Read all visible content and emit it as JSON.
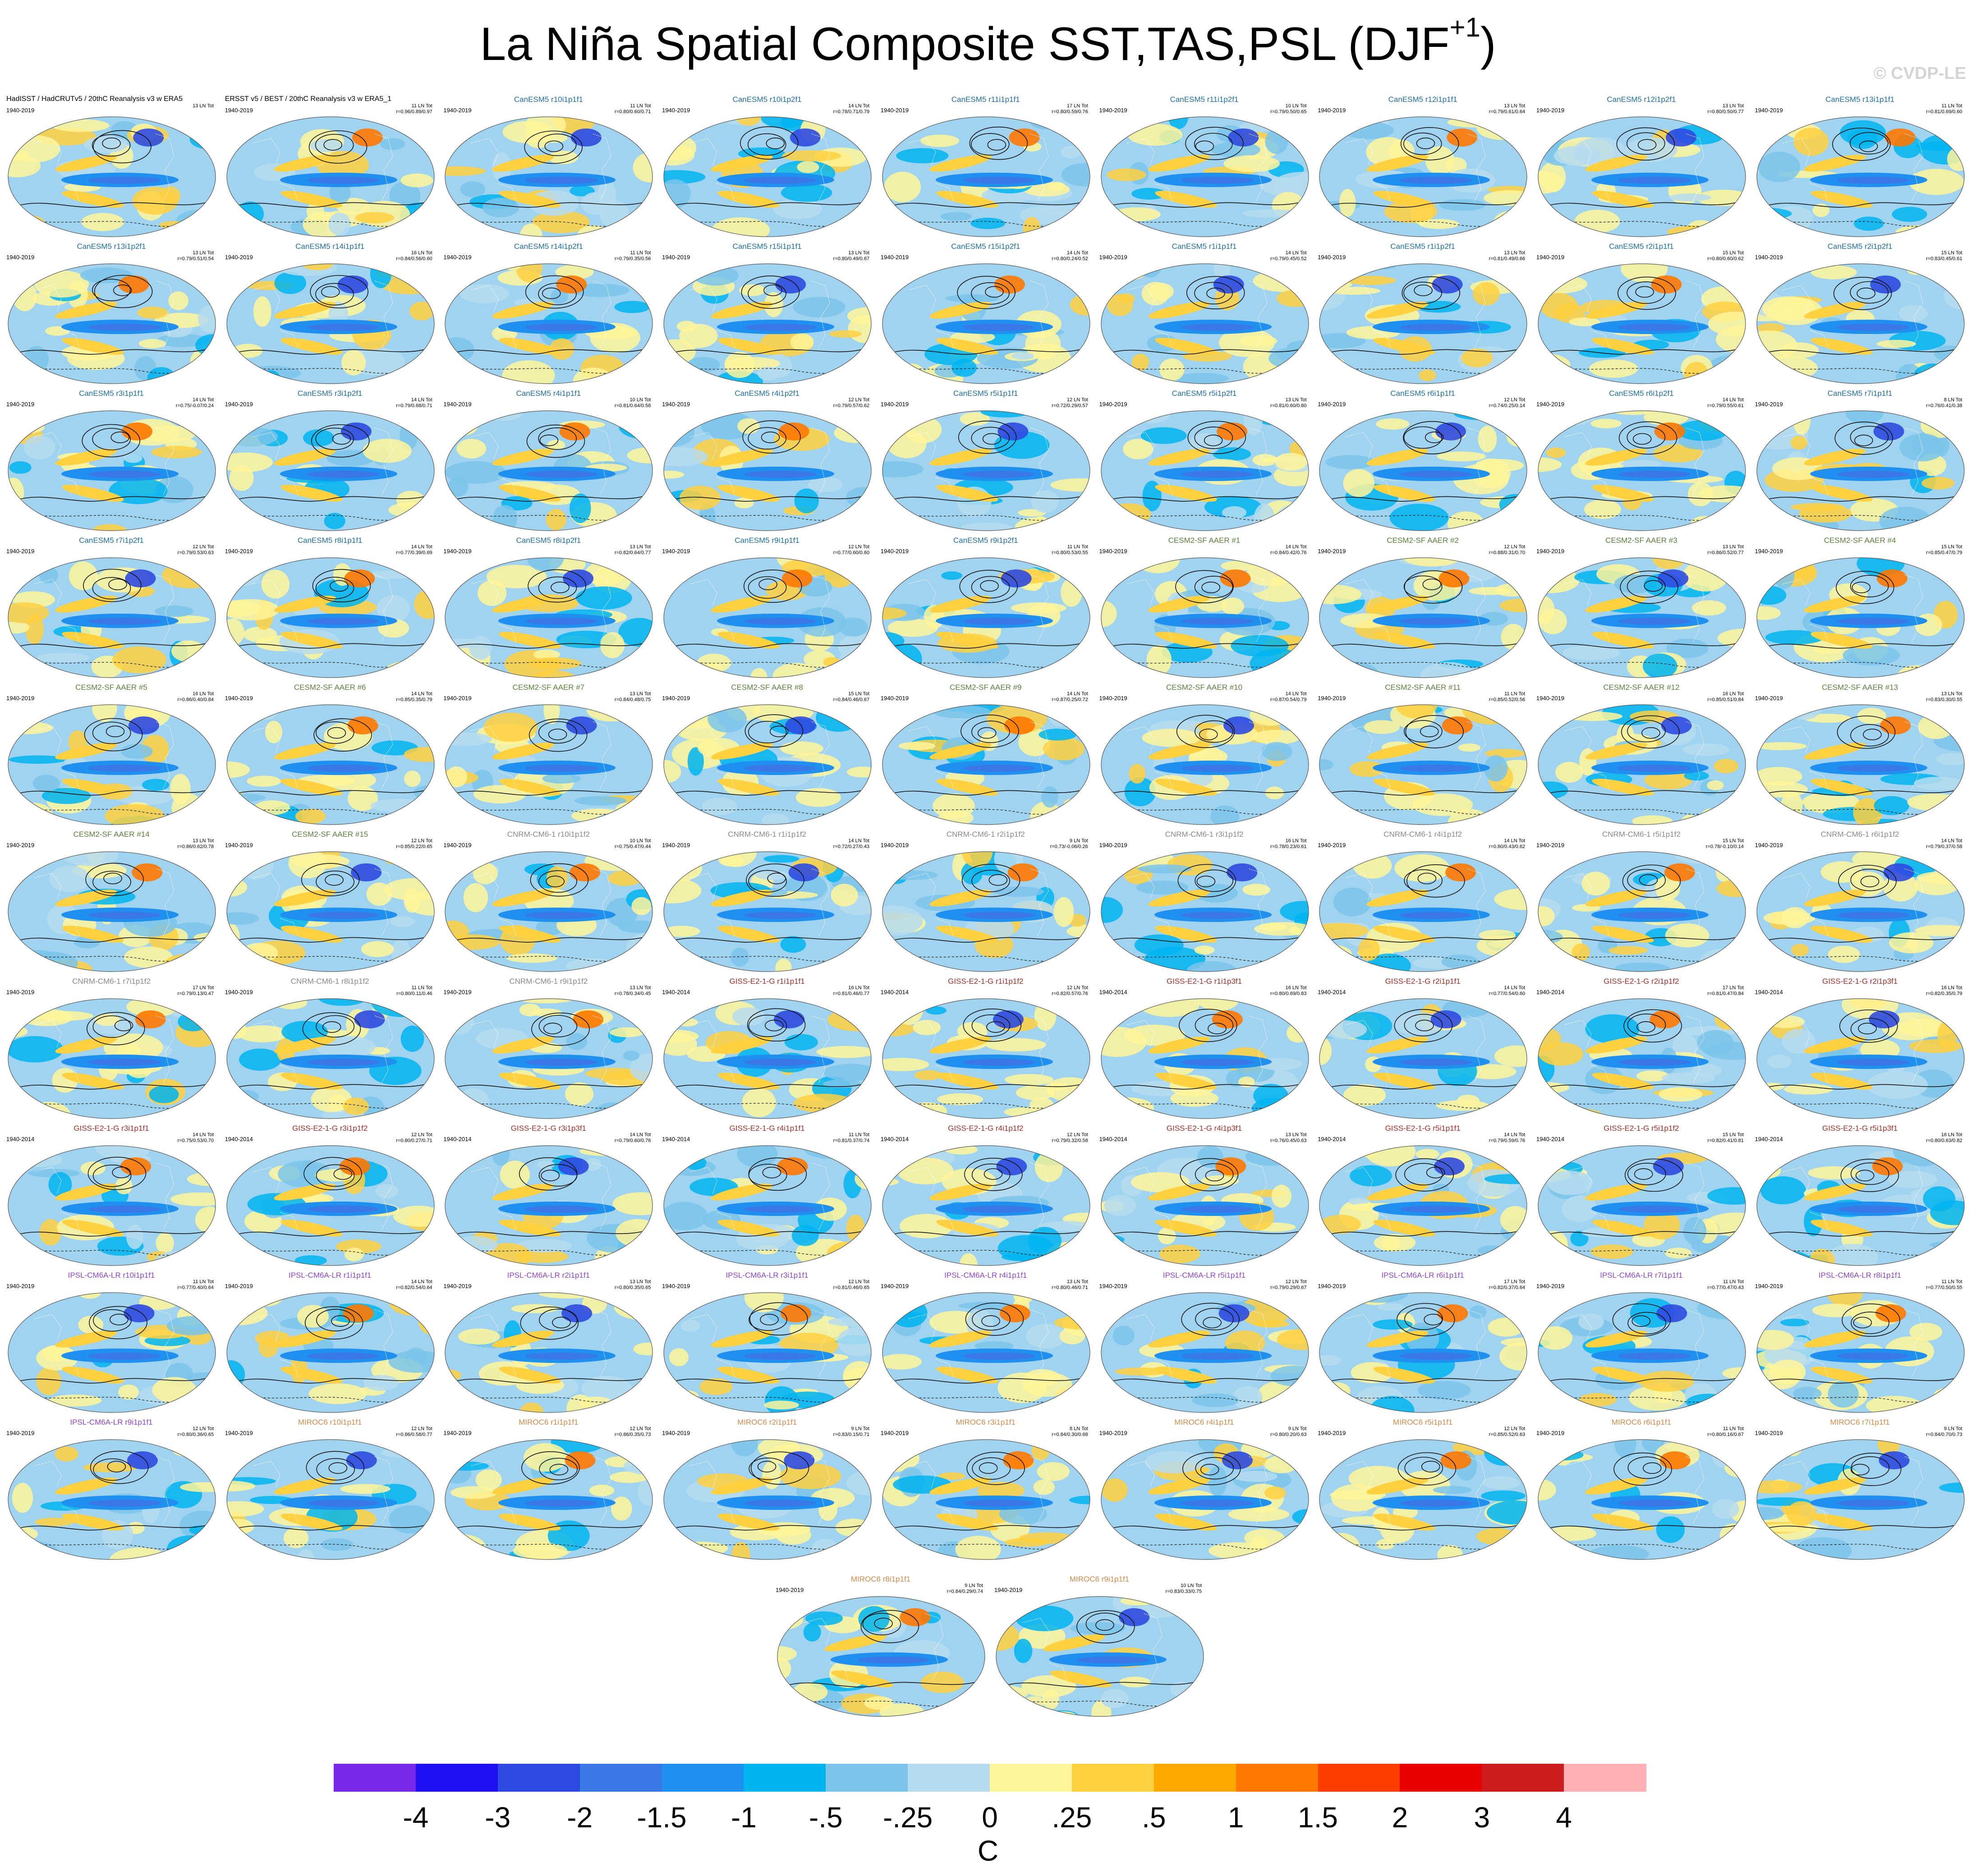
{
  "title": "La Niña Spatial Composite SST,TAS,PSL (DJF",
  "title_sup": "+1",
  "title_close": ")",
  "copyright": "© CVDP-LE",
  "colors": {
    "canesm": "#1f6fa0",
    "cesm2": "#5c7f3c",
    "cnrm": "#8a8a8a",
    "giss": "#a0302a",
    "ipsl": "#8d45c9",
    "miroc": "#d18a4a",
    "obs": "#000000"
  },
  "panels": [
    {
      "title": "HadISST / HadCRUTv5 / 20thC Reanalysis v3 w ERA5",
      "period": "1940-2019",
      "stats": [
        "13 LN Tot",
        ""
      ],
      "group": "obs"
    },
    {
      "title": "ERSST v5 / BEST / 20thC Reanalysis v3 w ERA5_1",
      "period": "1940-2019",
      "stats": [
        "11 LN Tot",
        "r=0.96/0.89/0.97"
      ],
      "group": "obs"
    },
    {
      "title": "CanESM5 r10i1p1f1",
      "period": "1940-2019",
      "stats": [
        "11 LN Tot",
        "r=0.80/0.60/0.71"
      ],
      "group": "canesm"
    },
    {
      "title": "CanESM5 r10i1p2f1",
      "period": "1940-2019",
      "stats": [
        "14 LN Tot",
        "r=0.78/0.71/0.79"
      ],
      "group": "canesm"
    },
    {
      "title": "CanESM5 r11i1p1f1",
      "period": "1940-2019",
      "stats": [
        "17 LN Tot",
        "r=0.80/0.59/0.76"
      ],
      "group": "canesm"
    },
    {
      "title": "CanESM5 r11i1p2f1",
      "period": "1940-2019",
      "stats": [
        "10 LN Tot",
        "r=0.79/0.50/0.65"
      ],
      "group": "canesm"
    },
    {
      "title": "CanESM5 r12i1p1f1",
      "period": "1940-2019",
      "stats": [
        "13 LN Tot",
        "r=0.79/0.61/0.64"
      ],
      "group": "canesm"
    },
    {
      "title": "CanESM5 r12i1p2f1",
      "period": "1940-2019",
      "stats": [
        "13 LN Tot",
        "r=0.80/0.50/0.77"
      ],
      "group": "canesm"
    },
    {
      "title": "CanESM5 r13i1p1f1",
      "period": "1940-2019",
      "stats": [
        "11 LN Tot",
        "r=0.81/0.69/0.60"
      ],
      "group": "canesm"
    },
    {
      "title": "CanESM5 r13i1p2f1",
      "period": "1940-2019",
      "stats": [
        "13 LN Tot",
        "r=0.79/0.51/0.54"
      ],
      "group": "canesm"
    },
    {
      "title": "CanESM5 r14i1p1f1",
      "period": "1940-2019",
      "stats": [
        "16 LN Tot",
        "r=0.84/0.56/0.60"
      ],
      "group": "canesm"
    },
    {
      "title": "CanESM5 r14i1p2f1",
      "period": "1940-2019",
      "stats": [
        "11 LN Tot",
        "r=0.79/0.35/0.56"
      ],
      "group": "canesm"
    },
    {
      "title": "CanESM5 r15i1p1f1",
      "period": "1940-2019",
      "stats": [
        "13 LN Tot",
        "r=0.80/0.49/0.67"
      ],
      "group": "canesm"
    },
    {
      "title": "CanESM5 r15i1p2f1",
      "period": "1940-2019",
      "stats": [
        "14 LN Tot",
        "r=0.80/0.24/0.52"
      ],
      "group": "canesm"
    },
    {
      "title": "CanESM5 r1i1p1f1",
      "period": "1940-2019",
      "stats": [
        "14 LN Tot",
        "r=0.79/0.45/0.52"
      ],
      "group": "canesm"
    },
    {
      "title": "CanESM5 r1i1p2f1",
      "period": "1940-2019",
      "stats": [
        "13 LN Tot",
        "r=0.81/0.49/0.66"
      ],
      "group": "canesm"
    },
    {
      "title": "CanESM5 r2i1p1f1",
      "period": "1940-2019",
      "stats": [
        "15 LN Tot",
        "r=0.80/0.60/0.62"
      ],
      "group": "canesm"
    },
    {
      "title": "CanESM5 r2i1p2f1",
      "period": "1940-2019",
      "stats": [
        "15 LN Tot",
        "r=0.83/0.45/0.61"
      ],
      "group": "canesm"
    },
    {
      "title": "CanESM5 r3i1p1f1",
      "period": "1940-2019",
      "stats": [
        "14 LN Tot",
        "r=0.75/-0.07/0.24"
      ],
      "group": "canesm"
    },
    {
      "title": "CanESM5 r3i1p2f1",
      "period": "1940-2019",
      "stats": [
        "14 LN Tot",
        "r=0.79/0.68/0.71"
      ],
      "group": "canesm"
    },
    {
      "title": "CanESM5 r4i1p1f1",
      "period": "1940-2019",
      "stats": [
        "10 LN Tot",
        "r=0.81/0.64/0.58"
      ],
      "group": "canesm"
    },
    {
      "title": "CanESM5 r4i1p2f1",
      "period": "1940-2019",
      "stats": [
        "12 LN Tot",
        "r=0.79/0.57/0.62"
      ],
      "group": "canesm"
    },
    {
      "title": "CanESM5 r5i1p1f1",
      "period": "1940-2019",
      "stats": [
        "12 LN Tot",
        "r=0.72/0.29/0.57"
      ],
      "group": "canesm"
    },
    {
      "title": "CanESM5 r5i1p2f1",
      "period": "1940-2019",
      "stats": [
        "13 LN Tot",
        "r=0.81/0.60/0.80"
      ],
      "group": "canesm"
    },
    {
      "title": "CanESM5 r6i1p1f1",
      "period": "1940-2019",
      "stats": [
        "12 LN Tot",
        "r=0.74/0.25/0.14"
      ],
      "group": "canesm"
    },
    {
      "title": "CanESM5 r6i1p2f1",
      "period": "1940-2019",
      "stats": [
        "14 LN Tot",
        "r=0.79/0.55/0.61"
      ],
      "group": "canesm"
    },
    {
      "title": "CanESM5 r7i1p1f1",
      "period": "1940-2019",
      "stats": [
        "8 LN Tot",
        "r=0.76/0.41/0.38"
      ],
      "group": "canesm"
    },
    {
      "title": "CanESM5 r7i1p2f1",
      "period": "1940-2019",
      "stats": [
        "12 LN Tot",
        "r=0.79/0.53/0.63"
      ],
      "group": "canesm"
    },
    {
      "title": "CanESM5 r8i1p1f1",
      "period": "1940-2019",
      "stats": [
        "14 LN Tot",
        "r=0.77/0.39/0.69"
      ],
      "group": "canesm"
    },
    {
      "title": "CanESM5 r8i1p2f1",
      "period": "1940-2019",
      "stats": [
        "13 LN Tot",
        "r=0.82/0.64/0.77"
      ],
      "group": "canesm"
    },
    {
      "title": "CanESM5 r9i1p1f1",
      "period": "1940-2019",
      "stats": [
        "12 LN Tot",
        "r=0.77/0.60/0.60"
      ],
      "group": "canesm"
    },
    {
      "title": "CanESM5 r9i1p2f1",
      "period": "1940-2019",
      "stats": [
        "11 LN Tot",
        "r=0.80/0.53/0.55"
      ],
      "group": "canesm"
    },
    {
      "title": "CESM2-SF AAER #1",
      "period": "1940-2019",
      "stats": [
        "14 LN Tot",
        "r=0.84/0.42/0.76"
      ],
      "group": "cesm2"
    },
    {
      "title": "CESM2-SF AAER #2",
      "period": "1940-2019",
      "stats": [
        "12 LN Tot",
        "r=0.88/0.31/0.70"
      ],
      "group": "cesm2"
    },
    {
      "title": "CESM2-SF AAER #3",
      "period": "1940-2019",
      "stats": [
        "13 LN Tot",
        "r=0.86/0.52/0.77"
      ],
      "group": "cesm2"
    },
    {
      "title": "CESM2-SF AAER #4",
      "period": "1940-2019",
      "stats": [
        "15 LN Tot",
        "r=0.85/0.47/0.79"
      ],
      "group": "cesm2"
    },
    {
      "title": "CESM2-SF AAER #5",
      "period": "1940-2019",
      "stats": [
        "16 LN Tot",
        "r=0.86/0.40/0.84"
      ],
      "group": "cesm2"
    },
    {
      "title": "CESM2-SF AAER #6",
      "period": "1940-2019",
      "stats": [
        "14 LN Tot",
        "r=0.85/0.35/0.79"
      ],
      "group": "cesm2"
    },
    {
      "title": "CESM2-SF AAER #7",
      "period": "1940-2019",
      "stats": [
        "13 LN Tot",
        "r=0.84/0.48/0.75"
      ],
      "group": "cesm2"
    },
    {
      "title": "CESM2-SF AAER #8",
      "period": "1940-2019",
      "stats": [
        "15 LN Tot",
        "r=0.84/0.46/0.67"
      ],
      "group": "cesm2"
    },
    {
      "title": "CESM2-SF AAER #9",
      "period": "1940-2019",
      "stats": [
        "14 LN Tot",
        "r=0.87/0.25/0.72"
      ],
      "group": "cesm2"
    },
    {
      "title": "CESM2-SF AAER #10",
      "period": "1940-2019",
      "stats": [
        "14 LN Tot",
        "r=0.87/0.54/0.79"
      ],
      "group": "cesm2"
    },
    {
      "title": "CESM2-SF AAER #11",
      "period": "1940-2019",
      "stats": [
        "11 LN Tot",
        "r=0.85/0.52/0.56"
      ],
      "group": "cesm2"
    },
    {
      "title": "CESM2-SF AAER #12",
      "period": "1940-2019",
      "stats": [
        "16 LN Tot",
        "r=0.85/0.51/0.84"
      ],
      "group": "cesm2"
    },
    {
      "title": "CESM2-SF AAER #13",
      "period": "1940-2019",
      "stats": [
        "13 LN Tot",
        "r=0.83/0.30/0.55"
      ],
      "group": "cesm2"
    },
    {
      "title": "CESM2-SF AAER #14",
      "period": "1940-2019",
      "stats": [
        "13 LN Tot",
        "r=0.86/0.62/0.78"
      ],
      "group": "cesm2"
    },
    {
      "title": "CESM2-SF AAER #15",
      "period": "1940-2019",
      "stats": [
        "12 LN Tot",
        "r=0.85/0.22/0.65"
      ],
      "group": "cesm2"
    },
    {
      "title": "CNRM-CM6-1 r10i1p1f2",
      "period": "1940-2019",
      "stats": [
        "10 LN Tot",
        "r=0.75/0.47/0.44"
      ],
      "group": "cnrm"
    },
    {
      "title": "CNRM-CM6-1 r1i1p1f2",
      "period": "1940-2019",
      "stats": [
        "14 LN Tot",
        "r=0.72/0.27/0.43"
      ],
      "group": "cnrm"
    },
    {
      "title": "CNRM-CM6-1 r2i1p1f2",
      "period": "1940-2019",
      "stats": [
        "9 LN Tot",
        "r=0.73/-0.06/0.26"
      ],
      "group": "cnrm"
    },
    {
      "title": "CNRM-CM6-1 r3i1p1f2",
      "period": "1940-2019",
      "stats": [
        "16 LN Tot",
        "r=0.78/0.23/0.61"
      ],
      "group": "cnrm"
    },
    {
      "title": "CNRM-CM6-1 r4i1p1f2",
      "period": "1940-2019",
      "stats": [
        "14 LN Tot",
        "r=0.80/0.43/0.62"
      ],
      "group": "cnrm"
    },
    {
      "title": "CNRM-CM6-1 r5i1p1f2",
      "period": "1940-2019",
      "stats": [
        "15 LN Tot",
        "r=0.78/-0.10/0.14"
      ],
      "group": "cnrm"
    },
    {
      "title": "CNRM-CM6-1 r6i1p1f2",
      "period": "1940-2019",
      "stats": [
        "14 LN Tot",
        "r=0.79/0.37/0.58"
      ],
      "group": "cnrm"
    },
    {
      "title": "CNRM-CM6-1 r7i1p1f2",
      "period": "1940-2019",
      "stats": [
        "17 LN Tot",
        "r=0.79/0.13/0.47"
      ],
      "group": "cnrm"
    },
    {
      "title": "CNRM-CM6-1 r8i1p1f2",
      "period": "1940-2019",
      "stats": [
        "11 LN Tot",
        "r=0.80/0.11/0.46"
      ],
      "group": "cnrm"
    },
    {
      "title": "CNRM-CM6-1 r9i1p1f2",
      "period": "1940-2019",
      "stats": [
        "13 LN Tot",
        "r=0.78/0.34/0.45"
      ],
      "group": "cnrm"
    },
    {
      "title": "GISS-E2-1-G r1i1p1f1",
      "period": "1940-2014",
      "stats": [
        "16 LN Tot",
        "r=0.81/0.46/0.77"
      ],
      "group": "giss"
    },
    {
      "title": "GISS-E2-1-G r1i1p1f2",
      "period": "1940-2014",
      "stats": [
        "12 LN Tot",
        "r=0.82/0.57/0.76"
      ],
      "group": "giss"
    },
    {
      "title": "GISS-E2-1-G r1i1p3f1",
      "period": "1940-2014",
      "stats": [
        "16 LN Tot",
        "r=0.80/0.69/0.83"
      ],
      "group": "giss"
    },
    {
      "title": "GISS-E2-1-G r2i1p1f1",
      "period": "1940-2014",
      "stats": [
        "14 LN Tot",
        "r=0.77/0.54/0.60"
      ],
      "group": "giss"
    },
    {
      "title": "GISS-E2-1-G r2i1p1f2",
      "period": "1940-2014",
      "stats": [
        "17 LN Tot",
        "r=0.81/0.47/0.84"
      ],
      "group": "giss"
    },
    {
      "title": "GISS-E2-1-G r2i1p3f1",
      "period": "1940-2014",
      "stats": [
        "16 LN Tot",
        "r=0.82/0.35/0.79"
      ],
      "group": "giss"
    },
    {
      "title": "GISS-E2-1-G r3i1p1f1",
      "period": "1940-2014",
      "stats": [
        "14 LN Tot",
        "r=0.75/0.53/0.70"
      ],
      "group": "giss"
    },
    {
      "title": "GISS-E2-1-G r3i1p1f2",
      "period": "1940-2014",
      "stats": [
        "12 LN Tot",
        "r=0.80/0.27/0.71"
      ],
      "group": "giss"
    },
    {
      "title": "GISS-E2-1-G r3i1p3f1",
      "period": "1940-2014",
      "stats": [
        "14 LN Tot",
        "r=0.79/0.60/0.76"
      ],
      "group": "giss"
    },
    {
      "title": "GISS-E2-1-G r4i1p1f1",
      "period": "1940-2014",
      "stats": [
        "11 LN Tot",
        "r=0.81/0.37/0.74"
      ],
      "group": "giss"
    },
    {
      "title": "GISS-E2-1-G r4i1p1f2",
      "period": "1940-2014",
      "stats": [
        "12 LN Tot",
        "r=0.79/0.32/0.58"
      ],
      "group": "giss"
    },
    {
      "title": "GISS-E2-1-G r4i1p3f1",
      "period": "1940-2014",
      "stats": [
        "13 LN Tot",
        "r=0.76/0.45/0.63"
      ],
      "group": "giss"
    },
    {
      "title": "GISS-E2-1-G r5i1p1f1",
      "period": "1940-2014",
      "stats": [
        "14 LN Tot",
        "r=0.79/0.59/0.76"
      ],
      "group": "giss"
    },
    {
      "title": "GISS-E2-1-G r5i1p1f2",
      "period": "1940-2014",
      "stats": [
        "15 LN Tot",
        "r=0.82/0.41/0.81"
      ],
      "group": "giss"
    },
    {
      "title": "GISS-E2-1-G r5i1p3f1",
      "period": "1940-2014",
      "stats": [
        "16 LN Tot",
        "r=0.80/0.63/0.82"
      ],
      "group": "giss"
    },
    {
      "title": "IPSL-CM6A-LR r10i1p1f1",
      "period": "1940-2019",
      "stats": [
        "11 LN Tot",
        "r=0.77/0.40/0.64"
      ],
      "group": "ipsl"
    },
    {
      "title": "IPSL-CM6A-LR r1i1p1f1",
      "period": "1940-2019",
      "stats": [
        "14 LN Tot",
        "r=0.82/0.54/0.64"
      ],
      "group": "ipsl"
    },
    {
      "title": "IPSL-CM6A-LR r2i1p1f1",
      "period": "1940-2019",
      "stats": [
        "13 LN Tot",
        "r=0.80/0.35/0.65"
      ],
      "group": "ipsl"
    },
    {
      "title": "IPSL-CM6A-LR r3i1p1f1",
      "period": "1940-2019",
      "stats": [
        "12 LN Tot",
        "r=0.81/0.46/0.65"
      ],
      "group": "ipsl"
    },
    {
      "title": "IPSL-CM6A-LR r4i1p1f1",
      "period": "1940-2019",
      "stats": [
        "13 LN Tot",
        "r=0.80/0.46/0.71"
      ],
      "group": "ipsl"
    },
    {
      "title": "IPSL-CM6A-LR r5i1p1f1",
      "period": "1940-2019",
      "stats": [
        "12 LN Tot",
        "r=0.79/0.29/0.67"
      ],
      "group": "ipsl"
    },
    {
      "title": "IPSL-CM6A-LR r6i1p1f1",
      "period": "1940-2019",
      "stats": [
        "17 LN Tot",
        "r=0.82/0.37/0.64"
      ],
      "group": "ipsl"
    },
    {
      "title": "IPSL-CM6A-LR r7i1p1f1",
      "period": "1940-2019",
      "stats": [
        "11 LN Tot",
        "r=0.77/0.47/0.43"
      ],
      "group": "ipsl"
    },
    {
      "title": "IPSL-CM6A-LR r8i1p1f1",
      "period": "1940-2019",
      "stats": [
        "11 LN Tot",
        "r=0.77/0.50/0.55"
      ],
      "group": "ipsl"
    },
    {
      "title": "IPSL-CM6A-LR r9i1p1f1",
      "period": "1940-2019",
      "stats": [
        "12 LN Tot",
        "r=0.80/0.36/0.65"
      ],
      "group": "ipsl"
    },
    {
      "title": "MIROC6 r10i1p1f1",
      "period": "1940-2019",
      "stats": [
        "12 LN Tot",
        "r=0.86/0.58/0.77"
      ],
      "group": "miroc"
    },
    {
      "title": "MIROC6 r1i1p1f1",
      "period": "1940-2019",
      "stats": [
        "12 LN Tot",
        "r=0.86/0.35/0.73"
      ],
      "group": "miroc"
    },
    {
      "title": "MIROC6 r2i1p1f1",
      "period": "1940-2019",
      "stats": [
        "9 LN Tot",
        "r=0.83/0.15/0.71"
      ],
      "group": "miroc"
    },
    {
      "title": "MIROC6 r3i1p1f1",
      "period": "1940-2019",
      "stats": [
        "8 LN Tot",
        "r=0.84/0.30/0.68"
      ],
      "group": "miroc"
    },
    {
      "title": "MIROC6 r4i1p1f1",
      "period": "1940-2019",
      "stats": [
        "9 LN Tot",
        "r=0.80/0.20/0.63"
      ],
      "group": "miroc"
    },
    {
      "title": "MIROC6 r5i1p1f1",
      "period": "1940-2019",
      "stats": [
        "12 LN Tot",
        "r=0.85/0.52/0.63"
      ],
      "group": "miroc"
    },
    {
      "title": "MIROC6 r6i1p1f1",
      "period": "1940-2019",
      "stats": [
        "11 LN Tot",
        "r=0.80/0.16/0.67"
      ],
      "group": "miroc"
    },
    {
      "title": "MIROC6 r7i1p1f1",
      "period": "1940-2019",
      "stats": [
        "9 LN Tot",
        "r=0.84/0.70/0.73"
      ],
      "group": "miroc"
    },
    {
      "title": "MIROC6 r8i1p1f1",
      "period": "1940-2019",
      "stats": [
        "9 LN Tot",
        "r=0.84/0.29/0.74"
      ],
      "group": "miroc"
    },
    {
      "title": "MIROC6 r9i1p1f1",
      "period": "1940-2019",
      "stats": [
        "10 LN Tot",
        "r=0.83/0.33/0.75"
      ],
      "group": "miroc"
    }
  ],
  "colorbar": {
    "colors": [
      "#7a28e8",
      "#1e10f0",
      "#2d4ae0",
      "#3a78e6",
      "#1f8ff0",
      "#00b4f0",
      "#7ac4ea",
      "#b6dcf0",
      "#fff59a",
      "#ffd040",
      "#ffa800",
      "#ff7800",
      "#ff3c00",
      "#e80000",
      "#cc1c1c",
      "#ffb0b4"
    ],
    "labels": [
      "-4",
      "-3",
      "-2",
      "-1.5",
      "-1",
      "-.5",
      "-.25",
      "0",
      ".25",
      ".5",
      "1",
      "1.5",
      "2",
      "3",
      "4"
    ],
    "units": "C"
  }
}
